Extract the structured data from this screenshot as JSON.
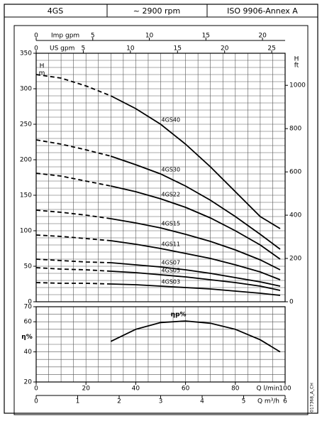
{
  "header": {
    "cells": [
      "4GS",
      "~ 2900 rpm",
      "ISO 9906-Annex A"
    ]
  },
  "doc_code": "017368_A_CH",
  "chart_data": [
    {
      "type": "line",
      "x": [
        0,
        10,
        20,
        30,
        40,
        50,
        60,
        70,
        80,
        90,
        98
      ],
      "xlim": [
        0,
        100
      ],
      "ylim": [
        0,
        350
      ],
      "yticks": [
        0,
        50,
        100,
        150,
        200,
        250,
        300,
        350
      ],
      "y_label": "H",
      "y_unit": "m",
      "y2lim": [
        0,
        1148.3
      ],
      "y2ticks": [
        0,
        200,
        400,
        600,
        800,
        1000
      ],
      "y2_label": "H",
      "y2_unit": "ft",
      "secondary_x": [
        {
          "label": "Imp gpm",
          "xlim": [
            0,
            22
          ],
          "xticks": [
            0,
            5,
            10,
            15,
            20
          ]
        },
        {
          "label": "US gpm",
          "xlim": [
            0,
            26.42
          ],
          "xticks": [
            0,
            5,
            10,
            15,
            20,
            25
          ]
        }
      ],
      "xgrid": [
        0,
        5,
        10,
        15,
        20,
        25,
        30,
        35,
        40,
        45,
        50,
        55,
        60,
        65,
        70,
        75,
        80,
        85,
        90,
        95,
        100
      ],
      "ygrid": [
        0,
        10,
        20,
        30,
        40,
        50,
        60,
        70,
        80,
        90,
        100,
        110,
        120,
        130,
        140,
        150,
        160,
        170,
        180,
        190,
        200,
        210,
        220,
        230,
        240,
        250,
        260,
        270,
        280,
        290,
        300,
        310,
        320,
        330,
        340,
        350
      ],
      "dashed_until": 30,
      "color": "#000000",
      "series": [
        {
          "name": "4GS40",
          "values": [
            320,
            315,
            304,
            290,
            272,
            250,
            222,
            190,
            155,
            120,
            103
          ]
        },
        {
          "name": "4GS30",
          "values": [
            228,
            222,
            214,
            205,
            193,
            180,
            163,
            143,
            120,
            95,
            74
          ]
        },
        {
          "name": "4GS22",
          "values": [
            181,
            177,
            170,
            163,
            155,
            145,
            133,
            118,
            100,
            80,
            60
          ]
        },
        {
          "name": "4GS15",
          "values": [
            129,
            126,
            122,
            117,
            111,
            104,
            95,
            85,
            73,
            59,
            45
          ]
        },
        {
          "name": "4GS11",
          "values": [
            94,
            92,
            89,
            86,
            81,
            75,
            68,
            61,
            52,
            42,
            31
          ]
        },
        {
          "name": "4GS07",
          "values": [
            60,
            58,
            56,
            55,
            52,
            49,
            45,
            40,
            34,
            28,
            22
          ]
        },
        {
          "name": "4GS05",
          "values": [
            48,
            46,
            45,
            43,
            41,
            38,
            35,
            31,
            27,
            22,
            16
          ]
        },
        {
          "name": "4GS03",
          "values": [
            27,
            26,
            26,
            25,
            24,
            22,
            20,
            18,
            15,
            12,
            9
          ]
        }
      ]
    },
    {
      "type": "line",
      "x": [
        30,
        40,
        50,
        60,
        70,
        80,
        90,
        98
      ],
      "xlim": [
        0,
        100
      ],
      "xticks": [
        0,
        20,
        40,
        60,
        80,
        100
      ],
      "x_label": "Q  l/min",
      "ylim": [
        20,
        70
      ],
      "yticks": [
        20,
        40,
        60,
        70
      ],
      "y_label": "η%",
      "secondary_x": [
        {
          "label": "Q  m³/h",
          "xlim": [
            0,
            6
          ],
          "xticks": [
            0,
            1,
            2,
            3,
            4,
            5,
            6
          ]
        }
      ],
      "xgrid": [
        0,
        5,
        10,
        15,
        20,
        25,
        30,
        35,
        40,
        45,
        50,
        55,
        60,
        65,
        70,
        75,
        80,
        85,
        90,
        95,
        100
      ],
      "ygrid": [
        20,
        25,
        30,
        35,
        40,
        45,
        50,
        55,
        60,
        65,
        70
      ],
      "color": "#000000",
      "series": [
        {
          "name": "ηp%",
          "values": [
            47,
            55,
            59.5,
            60.5,
            59,
            55,
            48,
            40
          ]
        }
      ]
    }
  ]
}
